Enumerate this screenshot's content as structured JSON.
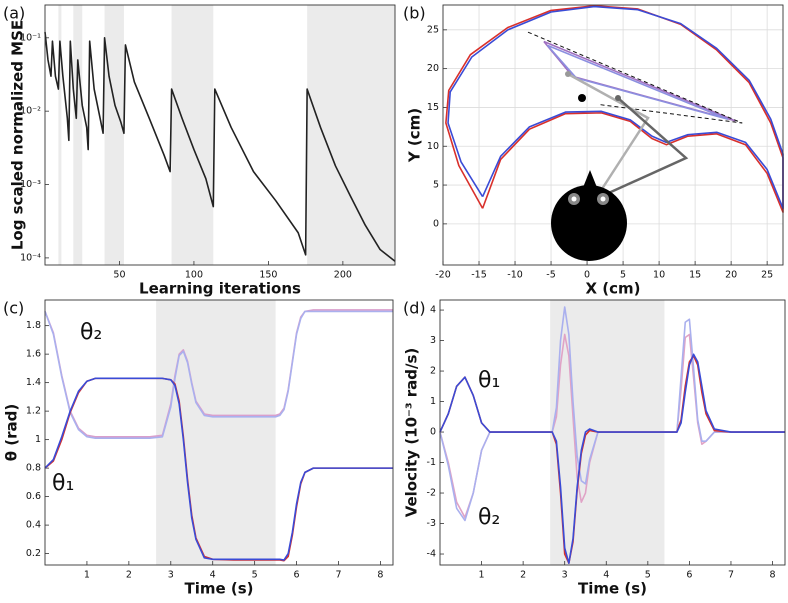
{
  "chart_data": [
    {
      "type": "line",
      "panel_label": "(a)",
      "x_label": "Learning iterations",
      "y_label": "Log scaled normalized MSE",
      "log_y": true,
      "xlim": [
        0,
        235
      ],
      "ylim": [
        8e-05,
        0.28
      ],
      "xticks": [
        50,
        100,
        150,
        200
      ],
      "yticks": [
        {
          "value": 0.1,
          "label": "10⁻¹"
        },
        {
          "value": 0.01,
          "label": "10⁻²"
        },
        {
          "value": 0.001,
          "label": "10⁻³"
        },
        {
          "value": 0.0001,
          "label": "10⁻⁴"
        }
      ],
      "shaded_regions": [
        [
          9,
          11
        ],
        [
          19,
          25
        ],
        [
          40,
          53
        ],
        [
          85,
          113
        ],
        [
          176,
          235
        ]
      ],
      "x": [
        0,
        2,
        4,
        5,
        7,
        9,
        10,
        12,
        15,
        16,
        17,
        19,
        21,
        22,
        25,
        28,
        29,
        30,
        33,
        37,
        39,
        40,
        43,
        47,
        51,
        53,
        54,
        60,
        70,
        80,
        84,
        85,
        92,
        100,
        108,
        113,
        114,
        125,
        140,
        155,
        170,
        175,
        176,
        185,
        195,
        205,
        215,
        225,
        235
      ],
      "series": [
        {
          "color": "#222222",
          "values": [
            0.12,
            0.05,
            0.03,
            0.09,
            0.03,
            0.02,
            0.09,
            0.03,
            0.008,
            0.004,
            0.09,
            0.02,
            0.008,
            0.05,
            0.012,
            0.006,
            0.003,
            0.09,
            0.02,
            0.008,
            0.005,
            0.1,
            0.03,
            0.012,
            0.007,
            0.005,
            0.08,
            0.025,
            0.008,
            0.0025,
            0.0015,
            0.02,
            0.008,
            0.003,
            0.0012,
            0.0005,
            0.02,
            0.006,
            0.0015,
            0.0006,
            0.00022,
            0.00011,
            0.02,
            0.006,
            0.0018,
            0.0007,
            0.00028,
            0.00013,
            9e-05
          ]
        }
      ]
    },
    {
      "type": "line",
      "panel_label": "(b)",
      "x_label": "X (cm)",
      "y_label": "Y (cm)",
      "grid": true,
      "xlim": [
        -20,
        27.2
      ],
      "ylim": [
        -5.3,
        28.2
      ],
      "xticks": [
        -20,
        -15,
        -10,
        -5,
        0,
        5,
        10,
        15,
        20,
        25
      ],
      "yticks": [
        0,
        5,
        10,
        15,
        20,
        25
      ],
      "series": [
        {
          "color": "#d9302b",
          "x": [
            -14.5,
            -17.8,
            -19.6,
            -19.2,
            -16.2,
            -11,
            -5,
            1,
            7,
            13,
            18,
            22.5,
            25.5,
            27.2,
            27.2,
            25,
            22,
            18,
            14,
            11,
            9,
            6,
            2,
            -3,
            -8,
            -12,
            -14.5
          ],
          "values": [
            2,
            7.5,
            13,
            17.2,
            21.8,
            25.3,
            27.5,
            28.1,
            27.7,
            25.7,
            22.4,
            18.2,
            13,
            8.5,
            1.5,
            6.5,
            10.2,
            11.6,
            11.3,
            10.2,
            11,
            13.2,
            14.3,
            14.2,
            12.2,
            8.3,
            2
          ]
        },
        {
          "color": "#3a4bd6",
          "x": [
            -14.5,
            -17.5,
            -19.3,
            -19,
            -16,
            -11,
            -5,
            1,
            7,
            13,
            18,
            22.5,
            25.5,
            27.2,
            27.2,
            25,
            22,
            18,
            14,
            11,
            9,
            6,
            2,
            -3,
            -8,
            -12,
            -14.5
          ],
          "values": [
            3.5,
            8,
            13,
            17,
            21.5,
            25,
            27.3,
            28,
            27.6,
            25.8,
            22.6,
            18.5,
            13.5,
            9,
            2,
            7,
            10.5,
            11.8,
            11.5,
            10.5,
            11.3,
            13.4,
            14.5,
            14.4,
            12.5,
            8.7,
            3.5
          ]
        },
        {
          "color": "#a070c0",
          "x": [
            -6,
            20.5,
            -2,
            -6
          ],
          "values": [
            23.5,
            13.3,
            19,
            23.5
          ]
        },
        {
          "color": "#8c8fe0",
          "x": [
            -5.5,
            19.5,
            -1.5,
            -5.5
          ],
          "values": [
            23,
            13.5,
            18.8,
            23
          ]
        },
        {
          "color": "#111111",
          "dashed": true,
          "x": [
            -8.2,
            21.5,
            1.5
          ],
          "values": [
            24.7,
            13,
            15.4
          ]
        }
      ]
    },
    {
      "type": "line",
      "panel_label": "(c)",
      "x_label": "Time (s)",
      "y_label": "θ (rad)",
      "annotations": [
        "θ₂",
        "θ₁"
      ],
      "xlim": [
        0,
        8.3
      ],
      "ylim": [
        0.12,
        1.98
      ],
      "xticks": [
        1,
        2,
        3,
        4,
        5,
        6,
        7,
        8
      ],
      "yticks": [
        0.2,
        0.4,
        0.6,
        0.8,
        1,
        1.2,
        1.4,
        1.6,
        1.8
      ],
      "shaded_regions": [
        [
          2.65,
          5.5
        ]
      ],
      "x": [
        0,
        0.2,
        0.4,
        0.6,
        0.8,
        1.0,
        1.2,
        1.5,
        2.0,
        2.5,
        2.8,
        3.0,
        3.1,
        3.2,
        3.3,
        3.4,
        3.5,
        3.6,
        3.8,
        4.0,
        4.5,
        5.0,
        5.5,
        5.6,
        5.7,
        5.8,
        5.9,
        6.0,
        6.1,
        6.2,
        6.4,
        6.6,
        7.0,
        7.5,
        8.0,
        8.3
      ],
      "series": [
        {
          "color": "#d99fcc",
          "values": [
            1.9,
            1.75,
            1.45,
            1.2,
            1.08,
            1.03,
            1.02,
            1.02,
            1.02,
            1.02,
            1.03,
            1.25,
            1.45,
            1.6,
            1.63,
            1.55,
            1.4,
            1.27,
            1.18,
            1.17,
            1.17,
            1.17,
            1.17,
            1.18,
            1.22,
            1.35,
            1.55,
            1.75,
            1.86,
            1.9,
            1.91,
            1.91,
            1.91,
            1.91,
            1.91,
            1.91
          ]
        },
        {
          "color": "#aab0ee",
          "values": [
            1.9,
            1.74,
            1.44,
            1.19,
            1.07,
            1.02,
            1.01,
            1.01,
            1.01,
            1.01,
            1.02,
            1.23,
            1.43,
            1.59,
            1.62,
            1.54,
            1.39,
            1.26,
            1.17,
            1.16,
            1.16,
            1.16,
            1.16,
            1.17,
            1.21,
            1.34,
            1.54,
            1.74,
            1.85,
            1.9,
            1.9,
            1.9,
            1.9,
            1.9,
            1.9,
            1.9
          ]
        },
        {
          "color": "#d9302b",
          "values": [
            0.8,
            0.85,
            1.0,
            1.19,
            1.33,
            1.41,
            1.43,
            1.43,
            1.43,
            1.43,
            1.43,
            1.42,
            1.39,
            1.27,
            1.02,
            0.72,
            0.47,
            0.31,
            0.18,
            0.16,
            0.155,
            0.155,
            0.155,
            0.155,
            0.15,
            0.18,
            0.33,
            0.53,
            0.69,
            0.77,
            0.8,
            0.8,
            0.8,
            0.8,
            0.8,
            0.8
          ]
        },
        {
          "color": "#3a4bd6",
          "values": [
            0.8,
            0.86,
            1.02,
            1.2,
            1.34,
            1.41,
            1.43,
            1.43,
            1.43,
            1.43,
            1.43,
            1.42,
            1.38,
            1.25,
            1.0,
            0.7,
            0.45,
            0.3,
            0.17,
            0.16,
            0.16,
            0.16,
            0.16,
            0.16,
            0.155,
            0.2,
            0.35,
            0.55,
            0.7,
            0.77,
            0.8,
            0.8,
            0.8,
            0.8,
            0.8,
            0.8
          ]
        }
      ]
    },
    {
      "type": "line",
      "panel_label": "(d)",
      "x_label": "Time (s)",
      "y_label": "Velocity (10⁻³ rad/s)",
      "annotations": [
        "θ₁",
        "θ₂"
      ],
      "xlim": [
        0,
        8.3
      ],
      "ylim": [
        -4.36,
        4.33
      ],
      "xticks": [
        1,
        2,
        3,
        4,
        5,
        6,
        7,
        8
      ],
      "yticks": [
        -4,
        -3,
        -2,
        -1,
        0,
        1,
        2,
        3,
        4
      ],
      "shaded_regions": [
        [
          2.65,
          5.4
        ]
      ],
      "x": [
        0,
        0.2,
        0.4,
        0.6,
        0.8,
        1.0,
        1.2,
        2.5,
        2.7,
        2.8,
        2.9,
        3.0,
        3.1,
        3.2,
        3.3,
        3.4,
        3.5,
        3.6,
        3.8,
        5.5,
        5.7,
        5.8,
        5.9,
        6.0,
        6.1,
        6.2,
        6.3,
        6.4,
        6.6,
        7.0,
        8.3
      ],
      "series": [
        {
          "color": "#e0a3c6",
          "values": [
            0,
            -1.0,
            -2.3,
            -2.8,
            -2.0,
            -0.6,
            0,
            0,
            0,
            0.5,
            2.2,
            3.2,
            2.5,
            0.5,
            -1.5,
            -2.3,
            -2.0,
            -1.0,
            0,
            0,
            0,
            1.4,
            3.1,
            3.2,
            1.8,
            0.3,
            -0.4,
            -0.3,
            0,
            0,
            0
          ]
        },
        {
          "color": "#aab0ee",
          "values": [
            0,
            -1.1,
            -2.5,
            -2.9,
            -2.0,
            -0.6,
            0,
            0,
            0,
            0.8,
            3.0,
            4.1,
            3.2,
            1.0,
            -0.8,
            -1.6,
            -1.7,
            -0.9,
            0,
            0,
            0,
            1.8,
            3.6,
            3.7,
            2.1,
            0.4,
            -0.3,
            -0.3,
            0,
            0,
            0
          ]
        },
        {
          "color": "#d9302b",
          "values": [
            0,
            0.6,
            1.5,
            1.8,
            1.2,
            0.3,
            0,
            0,
            0,
            -0.4,
            -2.0,
            -4.0,
            -4.3,
            -3.6,
            -1.9,
            -0.7,
            -0.1,
            0.05,
            0,
            0,
            0,
            0.4,
            1.5,
            2.3,
            2.5,
            2.2,
            1.3,
            0.6,
            0.05,
            0,
            0
          ]
        },
        {
          "color": "#3a4bd6",
          "values": [
            0,
            0.6,
            1.5,
            1.8,
            1.2,
            0.3,
            0,
            0,
            0,
            -0.3,
            -1.8,
            -3.8,
            -4.3,
            -3.5,
            -1.8,
            -0.6,
            0,
            0.1,
            0,
            0,
            0,
            0.3,
            1.3,
            2.2,
            2.55,
            2.3,
            1.5,
            0.7,
            0.1,
            0,
            0
          ]
        }
      ]
    }
  ]
}
